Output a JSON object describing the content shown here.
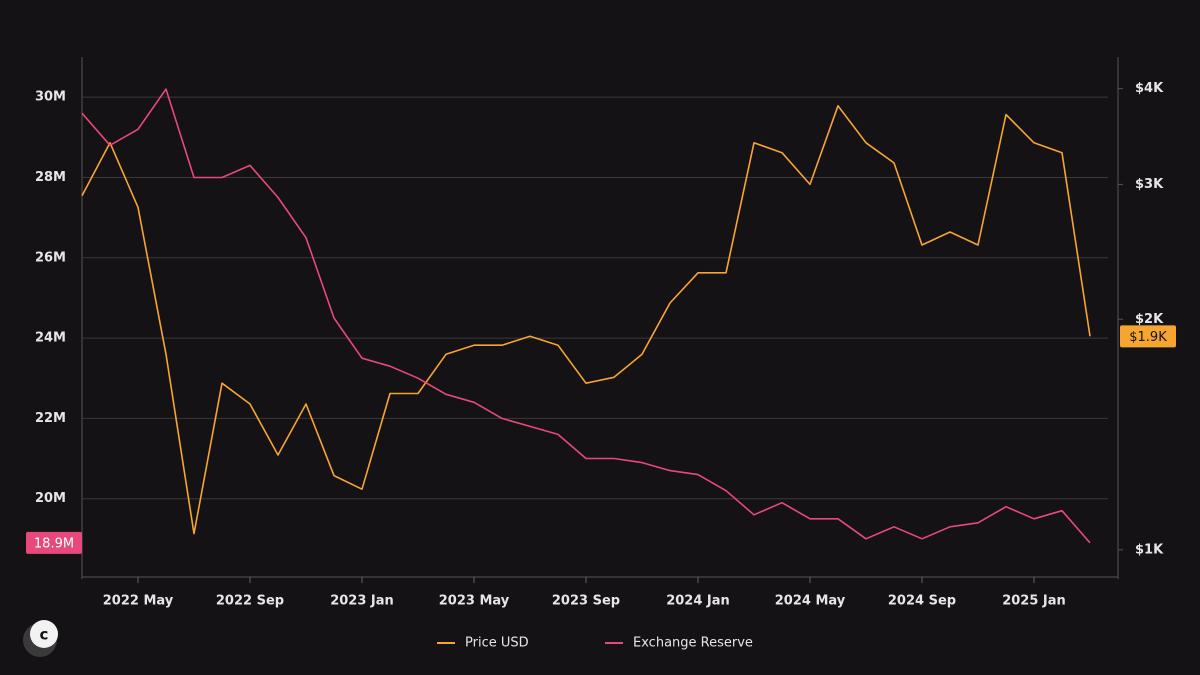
{
  "chart_data": {
    "type": "line",
    "x": [
      "2022-03",
      "2022-04",
      "2022-05",
      "2022-06",
      "2022-07",
      "2022-08",
      "2022-09",
      "2022-10",
      "2022-11",
      "2022-12",
      "2023-01",
      "2023-02",
      "2023-03",
      "2023-04",
      "2023-05",
      "2023-06",
      "2023-07",
      "2023-08",
      "2023-09",
      "2023-10",
      "2023-11",
      "2023-12",
      "2024-01",
      "2024-02",
      "2024-03",
      "2024-04",
      "2024-05",
      "2024-06",
      "2024-07",
      "2024-08",
      "2024-09",
      "2024-10",
      "2024-11",
      "2024-12",
      "2025-01",
      "2025-02",
      "2025-03"
    ],
    "series": [
      {
        "name": "Price USD",
        "color": "#f7a531",
        "axis": "y2",
        "values": [
          2900,
          3400,
          2800,
          1800,
          1050,
          1650,
          1550,
          1330,
          1550,
          1250,
          1200,
          1600,
          1600,
          1800,
          1850,
          1850,
          1900,
          1850,
          1650,
          1680,
          1800,
          2100,
          2300,
          2300,
          3400,
          3300,
          3000,
          3800,
          3400,
          3200,
          2500,
          2600,
          2500,
          3700,
          3400,
          3300,
          1900
        ]
      },
      {
        "name": "Exchange Reserve",
        "color": "#e8497a",
        "values": [
          29.6,
          28.8,
          29.2,
          30.2,
          28.0,
          28.0,
          28.3,
          27.5,
          26.5,
          24.5,
          23.5,
          23.3,
          23.0,
          22.6,
          22.4,
          22.0,
          21.8,
          21.6,
          21.0,
          21.0,
          20.9,
          20.7,
          20.6,
          20.2,
          19.6,
          19.9,
          19.5,
          19.5,
          19.0,
          19.3,
          19.0,
          19.3,
          19.4,
          19.8,
          19.5,
          19.7,
          18.9
        ]
      }
    ],
    "xlim": [
      "2022-03",
      "2025-04"
    ],
    "xticks": [
      {
        "value": "2022-05",
        "label": "2022 May"
      },
      {
        "value": "2022-09",
        "label": "2022 Sep"
      },
      {
        "value": "2023-01",
        "label": "2023 Jan"
      },
      {
        "value": "2023-05",
        "label": "2023 May"
      },
      {
        "value": "2023-09",
        "label": "2023 Sep"
      },
      {
        "value": "2024-01",
        "label": "2024 Jan"
      },
      {
        "value": "2024-05",
        "label": "2024 May"
      },
      {
        "value": "2024-09",
        "label": "2024 Sep"
      },
      {
        "value": "2025-01",
        "label": "2025 Jan"
      }
    ],
    "ylim": [
      18,
      31
    ],
    "yticks": [
      {
        "value": 20,
        "label": "20M"
      },
      {
        "value": 22,
        "label": "22M"
      },
      {
        "value": 24,
        "label": "24M"
      },
      {
        "value": 26,
        "label": "26M"
      },
      {
        "value": 28,
        "label": "28M"
      },
      {
        "value": 30,
        "label": "30M"
      }
    ],
    "y2lim": [
      916,
      4400
    ],
    "y2log": true,
    "y2ticks": [
      {
        "value": 1000,
        "label": "$1K"
      },
      {
        "value": 2000,
        "label": "$2K"
      },
      {
        "value": 3000,
        "label": "$3K"
      },
      {
        "value": 4000,
        "label": "$4K"
      }
    ],
    "grid": true,
    "legend": "bottom",
    "annotations": [
      {
        "label": "18.9M",
        "value": 18.9,
        "axis": "y",
        "color": "#e8497a"
      },
      {
        "label": "$1.9K",
        "value": 1900,
        "axis": "y2",
        "color": "#f7a531"
      }
    ]
  }
}
